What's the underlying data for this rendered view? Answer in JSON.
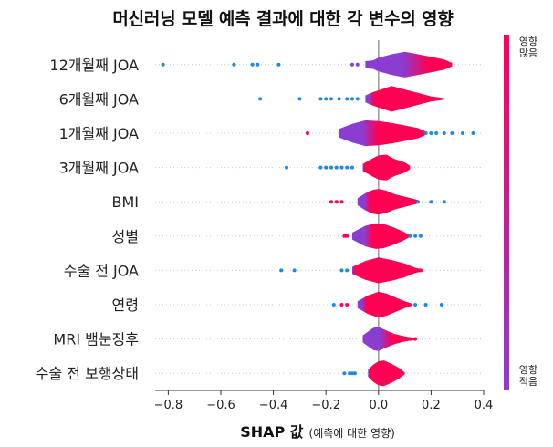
{
  "chart_data": {
    "type": "scatter",
    "subtype": "shap-violin-summary",
    "title": "머신러닝 모델 예측 결과에 대한 각 변수의 영향",
    "xlabel_main": "SHAP 값",
    "xlabel_sub": "(예측에 대한 영향)",
    "ylabel": "",
    "xlim": [
      -0.85,
      0.4
    ],
    "xticks": [
      -0.8,
      -0.6,
      -0.4,
      -0.2,
      0.0,
      0.2,
      0.4
    ],
    "xtick_labels": [
      "−0.8",
      "−0.6",
      "−0.4",
      "−0.2",
      "0.0",
      "0.2",
      "0.4"
    ],
    "grid": false,
    "zero_line": true,
    "colorbar": {
      "high_label": [
        "영향",
        "많음"
      ],
      "low_label": [
        "영향",
        "적음"
      ],
      "high_color": "#ff0052",
      "low_color": "#8a3dd0",
      "point_low_color": "#1e88e5"
    },
    "features": [
      {
        "name": "12개월째 JOA",
        "body": [
          [
            -0.05,
            0.2
          ],
          [
            -0.02,
            0.25
          ],
          [
            0.0,
            0.4
          ],
          [
            0.05,
            0.6
          ],
          [
            0.1,
            0.75
          ],
          [
            0.15,
            0.6
          ],
          [
            0.2,
            0.45
          ],
          [
            0.25,
            0.3
          ],
          [
            0.28,
            0.1
          ]
        ],
        "split": 0.72,
        "points": [
          [
            -0.82,
            "low"
          ],
          [
            -0.55,
            "low"
          ],
          [
            -0.48,
            "low"
          ],
          [
            -0.46,
            "low"
          ],
          [
            -0.38,
            "low"
          ],
          [
            -0.1,
            "mid"
          ],
          [
            -0.08,
            "mid"
          ]
        ]
      },
      {
        "name": "6개월째 JOA",
        "body": [
          [
            -0.05,
            0.2
          ],
          [
            -0.02,
            0.4
          ],
          [
            0.02,
            0.6
          ],
          [
            0.05,
            0.75
          ],
          [
            0.1,
            0.55
          ],
          [
            0.15,
            0.35
          ],
          [
            0.2,
            0.15
          ],
          [
            0.25,
            0.05
          ]
        ],
        "split": 0.1,
        "points": [
          [
            -0.45,
            "low"
          ],
          [
            -0.3,
            "low"
          ],
          [
            -0.22,
            "low"
          ],
          [
            -0.2,
            "low"
          ],
          [
            -0.18,
            "low"
          ],
          [
            -0.15,
            "low"
          ],
          [
            -0.12,
            "low"
          ],
          [
            -0.1,
            "low"
          ],
          [
            -0.08,
            "low"
          ]
        ]
      },
      {
        "name": "1개월째 JOA",
        "body": [
          [
            -0.15,
            0.25
          ],
          [
            -0.1,
            0.55
          ],
          [
            -0.05,
            0.75
          ],
          [
            0.0,
            0.7
          ],
          [
            0.05,
            0.6
          ],
          [
            0.1,
            0.45
          ],
          [
            0.15,
            0.3
          ],
          [
            0.18,
            0.1
          ]
        ],
        "split": 0.45,
        "points": [
          [
            -0.27,
            "high"
          ],
          [
            0.18,
            "low"
          ],
          [
            0.2,
            "low"
          ],
          [
            0.22,
            "low"
          ],
          [
            0.25,
            "low"
          ],
          [
            0.28,
            "low"
          ],
          [
            0.32,
            "low"
          ],
          [
            0.36,
            "low"
          ]
        ]
      },
      {
        "name": "3개월째 JOA",
        "body": [
          [
            -0.06,
            0.2
          ],
          [
            -0.02,
            0.55
          ],
          [
            0.0,
            0.7
          ],
          [
            0.03,
            0.75
          ],
          [
            0.06,
            0.5
          ],
          [
            0.1,
            0.3
          ],
          [
            0.12,
            0.1
          ]
        ],
        "split": 0.0,
        "points": [
          [
            -0.35,
            "low"
          ],
          [
            -0.22,
            "low"
          ],
          [
            -0.2,
            "low"
          ],
          [
            -0.18,
            "low"
          ],
          [
            -0.16,
            "low"
          ],
          [
            -0.14,
            "low"
          ],
          [
            -0.12,
            "low"
          ],
          [
            -0.1,
            "low"
          ]
        ]
      },
      {
        "name": "BMI",
        "body": [
          [
            -0.08,
            0.2
          ],
          [
            -0.05,
            0.5
          ],
          [
            -0.02,
            0.7
          ],
          [
            0.0,
            0.75
          ],
          [
            0.03,
            0.65
          ],
          [
            0.06,
            0.45
          ],
          [
            0.1,
            0.3
          ],
          [
            0.15,
            0.1
          ]
        ],
        "split": 0.2,
        "points": [
          [
            -0.18,
            "high"
          ],
          [
            -0.16,
            "high"
          ],
          [
            -0.14,
            "high"
          ],
          [
            0.15,
            "low"
          ],
          [
            0.2,
            "low"
          ],
          [
            0.25,
            "low"
          ]
        ]
      },
      {
        "name": "성별",
        "body": [
          [
            -0.1,
            0.2
          ],
          [
            -0.05,
            0.6
          ],
          [
            -0.01,
            0.75
          ],
          [
            0.02,
            0.7
          ],
          [
            0.05,
            0.55
          ],
          [
            0.09,
            0.3
          ],
          [
            0.12,
            0.05
          ]
        ],
        "split": 0.35,
        "points": [
          [
            -0.13,
            "high"
          ],
          [
            -0.12,
            "high"
          ],
          [
            0.12,
            "low"
          ],
          [
            0.14,
            "low"
          ],
          [
            0.16,
            "low"
          ]
        ]
      },
      {
        "name": "수술 전 JOA",
        "body": [
          [
            -0.1,
            0.2
          ],
          [
            -0.05,
            0.55
          ],
          [
            0.0,
            0.75
          ],
          [
            0.05,
            0.6
          ],
          [
            0.1,
            0.4
          ],
          [
            0.14,
            0.15
          ],
          [
            0.17,
            0.05
          ]
        ],
        "split": 0.0,
        "points": [
          [
            -0.37,
            "low"
          ],
          [
            -0.32,
            "low"
          ],
          [
            -0.14,
            "low"
          ],
          [
            -0.12,
            "low"
          ],
          [
            0.14,
            "high"
          ],
          [
            0.16,
            "high"
          ]
        ]
      },
      {
        "name": "연령",
        "body": [
          [
            -0.08,
            0.2
          ],
          [
            -0.04,
            0.55
          ],
          [
            0.0,
            0.75
          ],
          [
            0.03,
            0.65
          ],
          [
            0.06,
            0.45
          ],
          [
            0.1,
            0.2
          ],
          [
            0.13,
            0.05
          ]
        ],
        "split": 0.15,
        "points": [
          [
            -0.17,
            "low"
          ],
          [
            -0.14,
            "high"
          ],
          [
            -0.12,
            "high"
          ],
          [
            0.14,
            "low"
          ],
          [
            0.18,
            "low"
          ],
          [
            0.24,
            "low"
          ]
        ]
      },
      {
        "name": "MRI 뱀눈징후",
        "body": [
          [
            -0.06,
            0.2
          ],
          [
            -0.02,
            0.65
          ],
          [
            0.0,
            0.7
          ],
          [
            0.03,
            0.5
          ],
          [
            0.06,
            0.3
          ],
          [
            0.1,
            0.15
          ],
          [
            0.14,
            0.05
          ]
        ],
        "split": 0.55,
        "points": [
          [
            0.12,
            "high"
          ],
          [
            0.14,
            "high"
          ]
        ]
      },
      {
        "name": "수술 전 보행상태",
        "body": [
          [
            -0.04,
            0.2
          ],
          [
            -0.02,
            0.5
          ],
          [
            0.0,
            0.7
          ],
          [
            0.02,
            0.75
          ],
          [
            0.05,
            0.55
          ],
          [
            0.08,
            0.3
          ],
          [
            0.1,
            0.05
          ]
        ],
        "split": 0.0,
        "points": [
          [
            -0.13,
            "low"
          ],
          [
            -0.11,
            "low"
          ],
          [
            -0.1,
            "low"
          ],
          [
            -0.09,
            "low"
          ],
          [
            0.08,
            "high"
          ],
          [
            0.09,
            "high"
          ]
        ]
      }
    ]
  }
}
